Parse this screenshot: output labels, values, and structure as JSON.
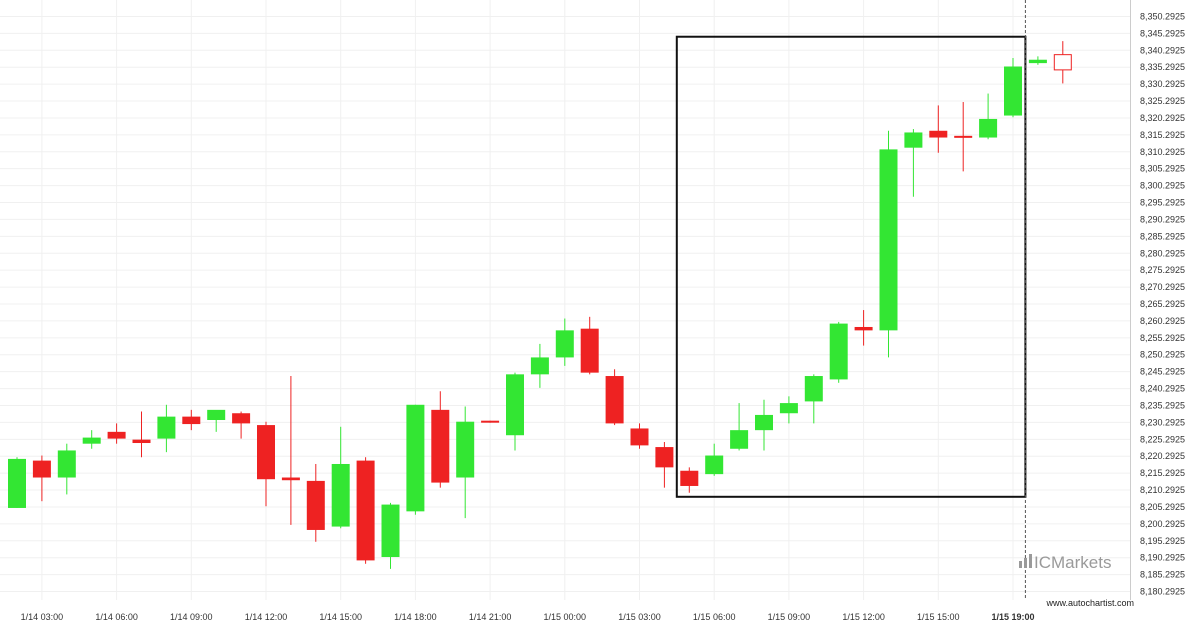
{
  "chart_data": {
    "type": "candlestick",
    "ylim": [
      8177.7925,
      8352.7925
    ],
    "y_ticks": [
      "8,350.2925",
      "8,345.2925",
      "8,340.2925",
      "8,335.2925",
      "8,330.2925",
      "8,325.2925",
      "8,320.2925",
      "8,315.2925",
      "8,310.2925",
      "8,305.2925",
      "8,300.2925",
      "8,295.2925",
      "8,290.2925",
      "8,285.2925",
      "8,280.2925",
      "8,275.2925",
      "8,270.2925",
      "8,265.2925",
      "8,260.2925",
      "8,255.2925",
      "8,250.2925",
      "8,245.2925",
      "8,240.2925",
      "8,235.2925",
      "8,230.2925",
      "8,225.2925",
      "8,220.2925",
      "8,215.2925",
      "8,210.2925",
      "8,205.2925",
      "8,200.2925",
      "8,195.2925",
      "8,190.2925",
      "8,185.2925",
      "8,180.2925"
    ],
    "x_ticks": [
      {
        "label": "1/14 03:00",
        "bar": 1
      },
      {
        "label": "1/14 06:00",
        "bar": 4
      },
      {
        "label": "1/14 09:00",
        "bar": 7
      },
      {
        "label": "1/14 12:00",
        "bar": 10
      },
      {
        "label": "1/14 15:00",
        "bar": 13
      },
      {
        "label": "1/14 18:00",
        "bar": 16
      },
      {
        "label": "1/14 21:00",
        "bar": 19
      },
      {
        "label": "1/15 00:00",
        "bar": 22
      },
      {
        "label": "1/15 03:00",
        "bar": 25
      },
      {
        "label": "1/15 06:00",
        "bar": 28
      },
      {
        "label": "1/15 09:00",
        "bar": 31
      },
      {
        "label": "1/15 12:00",
        "bar": 34
      },
      {
        "label": "1/15 15:00",
        "bar": 37
      },
      {
        "label": "1/15 19:00",
        "bar": 40,
        "bold": true
      }
    ],
    "candles": [
      {
        "o": 8205.0,
        "h": 8220.0,
        "l": 8205.0,
        "c": 8219.5
      },
      {
        "o": 8219.0,
        "h": 8220.5,
        "l": 8207.0,
        "c": 8214.0
      },
      {
        "o": 8214.0,
        "h": 8224.0,
        "l": 8209.0,
        "c": 8222.0
      },
      {
        "o": 8224.0,
        "h": 8228.0,
        "l": 8222.5,
        "c": 8225.8
      },
      {
        "o": 8227.5,
        "h": 8230.0,
        "l": 8224.0,
        "c": 8225.5
      },
      {
        "o": 8225.2,
        "h": 8233.5,
        "l": 8220.0,
        "c": 8224.2
      },
      {
        "o": 8225.5,
        "h": 8235.5,
        "l": 8221.5,
        "c": 8232.0
      },
      {
        "o": 8232.0,
        "h": 8234.0,
        "l": 8228.0,
        "c": 8229.8
      },
      {
        "o": 8231.0,
        "h": 8233.5,
        "l": 8227.5,
        "c": 8234.0
      },
      {
        "o": 8233.0,
        "h": 8233.5,
        "l": 8225.5,
        "c": 8230.0
      },
      {
        "o": 8229.5,
        "h": 8230.5,
        "l": 8205.5,
        "c": 8213.5
      },
      {
        "o": 8214.0,
        "h": 8244.0,
        "l": 8200.0,
        "c": 8213.2
      },
      {
        "o": 8213.0,
        "h": 8218.0,
        "l": 8195.0,
        "c": 8198.5
      },
      {
        "o": 8199.5,
        "h": 8229.0,
        "l": 8199.0,
        "c": 8218.0
      },
      {
        "o": 8219.0,
        "h": 8220.0,
        "l": 8188.5,
        "c": 8189.5
      },
      {
        "o": 8190.5,
        "h": 8206.5,
        "l": 8187.0,
        "c": 8206.0
      },
      {
        "o": 8204.0,
        "h": 8235.5,
        "l": 8203.0,
        "c": 8235.5
      },
      {
        "o": 8234.0,
        "h": 8239.5,
        "l": 8211.0,
        "c": 8212.5
      },
      {
        "o": 8214.0,
        "h": 8235.0,
        "l": 8202.0,
        "c": 8230.5
      },
      {
        "o": 8230.8,
        "h": 8230.8,
        "l": 8230.2,
        "c": 8230.5
      },
      {
        "o": 8226.5,
        "h": 8245.0,
        "l": 8222.0,
        "c": 8244.5
      },
      {
        "o": 8244.5,
        "h": 8253.5,
        "l": 8240.5,
        "c": 8249.5
      },
      {
        "o": 8249.5,
        "h": 8261.0,
        "l": 8247.0,
        "c": 8257.5
      },
      {
        "o": 8258.0,
        "h": 8261.5,
        "l": 8244.5,
        "c": 8245.0
      },
      {
        "o": 8244.0,
        "h": 8246.0,
        "l": 8229.5,
        "c": 8230.0
      },
      {
        "o": 8228.5,
        "h": 8230.0,
        "l": 8222.5,
        "c": 8223.5
      },
      {
        "o": 8223.0,
        "h": 8224.5,
        "l": 8211.0,
        "c": 8217.0
      },
      {
        "o": 8216.0,
        "h": 8217.0,
        "l": 8209.5,
        "c": 8211.5
      },
      {
        "o": 8215.0,
        "h": 8224.0,
        "l": 8214.5,
        "c": 8220.5
      },
      {
        "o": 8222.5,
        "h": 8236.0,
        "l": 8222.0,
        "c": 8228.0
      },
      {
        "o": 8228.0,
        "h": 8237.0,
        "l": 8222.0,
        "c": 8232.5
      },
      {
        "o": 8233.0,
        "h": 8238.0,
        "l": 8230.0,
        "c": 8236.0
      },
      {
        "o": 8236.5,
        "h": 8244.5,
        "l": 8230.0,
        "c": 8244.0
      },
      {
        "o": 8243.0,
        "h": 8260.0,
        "l": 8242.0,
        "c": 8259.5
      },
      {
        "o": 8258.5,
        "h": 8263.5,
        "l": 8253.0,
        "c": 8257.5
      },
      {
        "o": 8257.5,
        "h": 8316.5,
        "l": 8249.5,
        "c": 8311.0
      },
      {
        "o": 8311.5,
        "h": 8317.0,
        "l": 8297.0,
        "c": 8316.0
      },
      {
        "o": 8316.5,
        "h": 8324.0,
        "l": 8310.0,
        "c": 8314.5
      },
      {
        "o": 8315.0,
        "h": 8325.0,
        "l": 8304.5,
        "c": 8314.8
      },
      {
        "o": 8314.5,
        "h": 8327.5,
        "l": 8314.0,
        "c": 8320.0
      },
      {
        "o": 8321.0,
        "h": 8338.0,
        "l": 8320.5,
        "c": 8335.5
      },
      {
        "o": 8336.5,
        "h": 8338.5,
        "l": 8336.0,
        "c": 8337.5
      },
      {
        "o": 8339.0,
        "h": 8343.0,
        "l": 8330.5,
        "c": 8334.5
      }
    ],
    "colors": {
      "bull": "#33e633",
      "bear": "#ee2222"
    },
    "pattern_box": {
      "from_bar": 27,
      "to_bar": 41,
      "top": 8344.3,
      "bottom": 8208.3
    },
    "vline_bar": 41
  },
  "footer": {
    "url": "www.autochartist.com"
  },
  "watermark": {
    "text": "ICMarkets"
  }
}
